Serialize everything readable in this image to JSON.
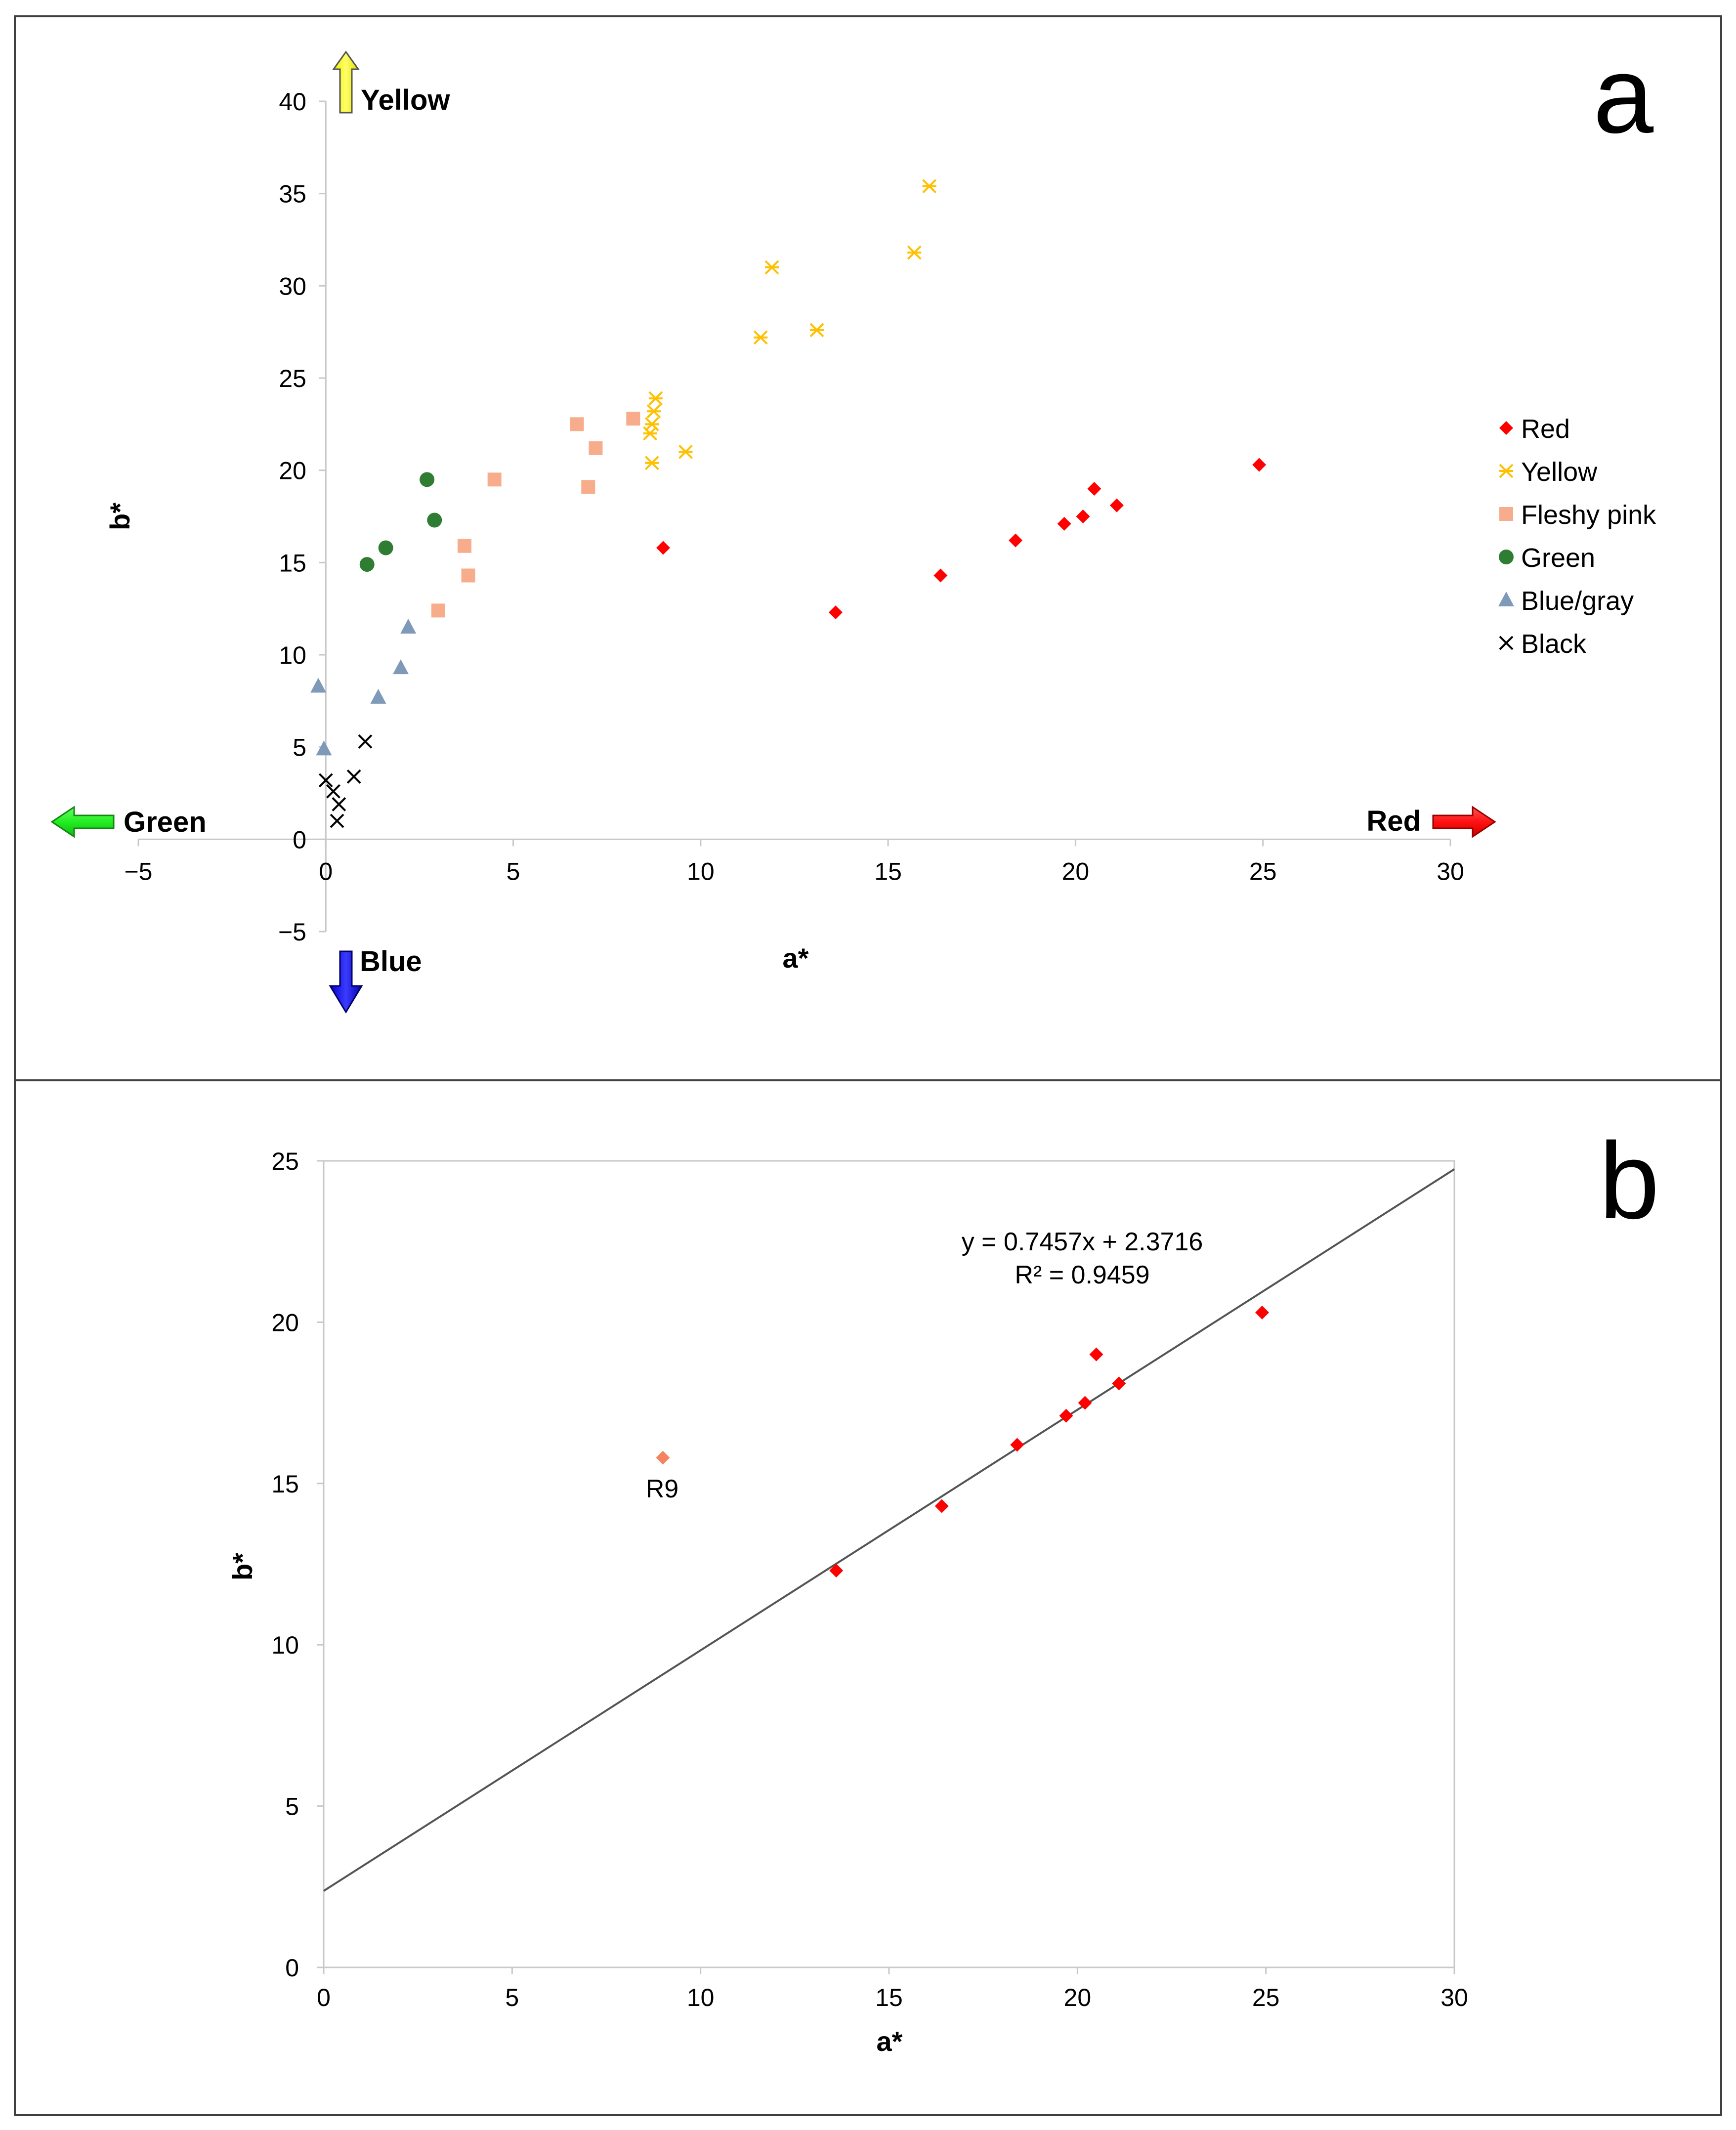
{
  "chart_data": [
    {
      "panel": "a",
      "type": "scatter",
      "xlabel": "a*",
      "ylabel": "b*",
      "xlim": [
        -5,
        30
      ],
      "ylim": [
        -5,
        40
      ],
      "x_ticks": [
        "−5",
        "0",
        "5",
        "10",
        "15",
        "20",
        "25",
        "30"
      ],
      "y_ticks": [
        "−5",
        "0",
        "5",
        "10",
        "15",
        "20",
        "25",
        "30",
        "35",
        "40"
      ],
      "grid": false,
      "legend_position": "right",
      "direction_labels": {
        "up": "Yellow",
        "down": "Blue",
        "left": "Green",
        "right": "Red"
      },
      "series": [
        {
          "name": "Red",
          "marker": "diamond",
          "color": "#ff0000",
          "points": [
            [
              9.0,
              15.8
            ],
            [
              13.6,
              12.3
            ],
            [
              16.4,
              14.3
            ],
            [
              18.4,
              16.2
            ],
            [
              19.7,
              17.1
            ],
            [
              20.2,
              17.5
            ],
            [
              20.5,
              19.0
            ],
            [
              21.1,
              18.1
            ],
            [
              24.9,
              20.3
            ]
          ]
        },
        {
          "name": "Yellow",
          "marker": "asterisk",
          "color": "#ffc000",
          "points": [
            [
              8.7,
              20.4
            ],
            [
              8.65,
              22.0
            ],
            [
              8.7,
              22.5
            ],
            [
              8.75,
              23.2
            ],
            [
              8.8,
              23.9
            ],
            [
              9.6,
              21.0
            ],
            [
              11.6,
              27.2
            ],
            [
              11.9,
              31.0
            ],
            [
              13.1,
              27.6
            ],
            [
              15.7,
              31.8
            ],
            [
              16.1,
              35.4
            ]
          ]
        },
        {
          "name": "Fleshy pink",
          "marker": "square",
          "color": "#f7ad8c",
          "points": [
            [
              3.0,
              12.4
            ],
            [
              3.8,
              14.3
            ],
            [
              3.7,
              15.9
            ],
            [
              4.5,
              19.5
            ],
            [
              6.7,
              22.5
            ],
            [
              7.0,
              19.1
            ],
            [
              7.2,
              21.2
            ],
            [
              8.2,
              22.8
            ]
          ]
        },
        {
          "name": "Green",
          "marker": "circle",
          "color": "#2e7d32",
          "points": [
            [
              1.1,
              14.9
            ],
            [
              1.6,
              15.8
            ],
            [
              2.7,
              19.5
            ],
            [
              2.9,
              17.3
            ]
          ]
        },
        {
          "name": "Blue/gray",
          "marker": "triangle",
          "color": "#7f99b8",
          "points": [
            [
              -0.2,
              8.3
            ],
            [
              -0.05,
              4.9
            ],
            [
              1.4,
              7.7
            ],
            [
              2.0,
              9.3
            ],
            [
              2.2,
              11.5
            ]
          ]
        },
        {
          "name": "Black",
          "marker": "x",
          "color": "#000000",
          "points": [
            [
              0.0,
              3.2
            ],
            [
              0.2,
              2.6
            ],
            [
              0.35,
              1.9
            ],
            [
              0.3,
              1.0
            ],
            [
              0.75,
              3.4
            ],
            [
              1.05,
              5.3
            ]
          ]
        }
      ]
    },
    {
      "panel": "b",
      "type": "scatter",
      "xlabel": "a*",
      "ylabel": "b*",
      "xlim": [
        0,
        30
      ],
      "ylim": [
        0,
        25
      ],
      "x_ticks": [
        "0",
        "5",
        "10",
        "15",
        "20",
        "25",
        "30"
      ],
      "y_ticks": [
        "0",
        "5",
        "10",
        "15",
        "20",
        "25"
      ],
      "grid": false,
      "trendline": {
        "slope": 0.7457,
        "intercept": 2.3716,
        "color": "#555555"
      },
      "equation": "y = 0.7457x + 2.3716",
      "r_squared": "R² = 0.9459",
      "outlier": {
        "label": "R9",
        "x": 9.0,
        "y": 15.8,
        "color": "#f4845f"
      },
      "series": [
        {
          "name": "Red",
          "marker": "diamond",
          "color": "#ff0000",
          "points": [
            [
              13.6,
              12.3
            ],
            [
              16.4,
              14.3
            ],
            [
              18.4,
              16.2
            ],
            [
              19.7,
              17.1
            ],
            [
              20.2,
              17.5
            ],
            [
              20.5,
              19.0
            ],
            [
              21.1,
              18.1
            ],
            [
              24.9,
              20.3
            ]
          ]
        }
      ]
    }
  ]
}
